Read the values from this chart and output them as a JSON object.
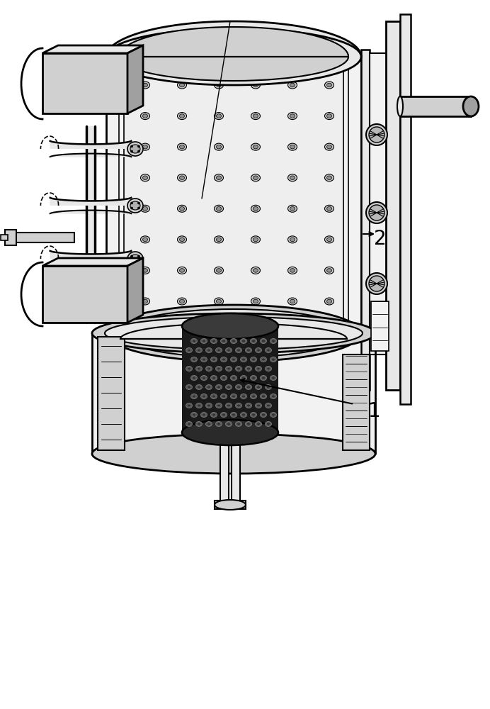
{
  "bg_color": "#ffffff",
  "lc": "#000000",
  "lc_gray": "#888888",
  "fill_white": "#ffffff",
  "fill_vlight": "#f2f2f2",
  "fill_light": "#e8e8e8",
  "fill_med": "#d0d0d0",
  "fill_dark": "#a0a0a0",
  "fill_darker": "#606060",
  "fill_darkest": "#282828",
  "label_1": "1",
  "label_2": "2",
  "label_fontsize": 20,
  "fig_width": 6.92,
  "fig_height": 10.0,
  "dpi": 100
}
